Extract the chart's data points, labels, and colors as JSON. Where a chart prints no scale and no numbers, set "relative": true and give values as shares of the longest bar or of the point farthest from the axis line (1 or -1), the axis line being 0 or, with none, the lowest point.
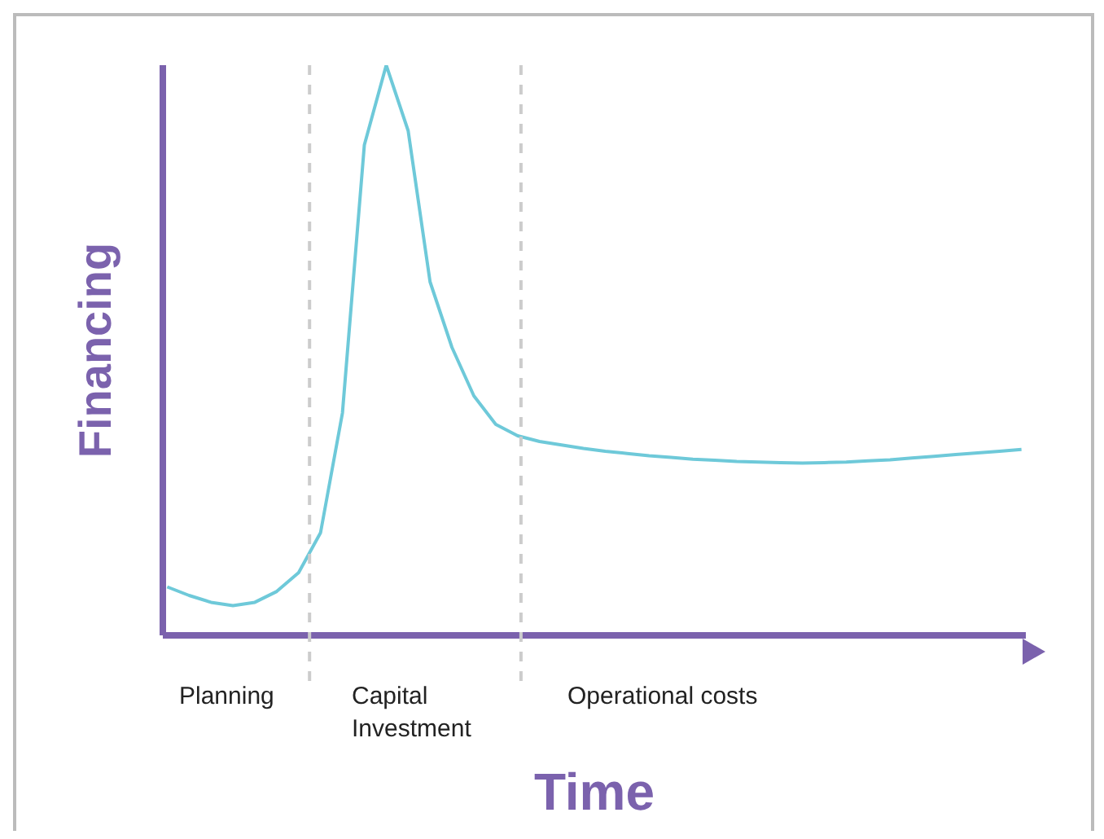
{
  "chart_data": {
    "type": "line",
    "relative": true,
    "xlabel": "Time",
    "ylabel": "Financing",
    "categories": [
      null,
      null,
      null,
      null,
      null,
      null,
      null,
      null,
      null,
      null,
      null,
      null,
      null,
      null,
      null,
      null,
      null,
      null,
      null,
      null,
      null,
      null,
      null,
      null,
      null,
      null,
      null,
      null,
      null,
      null,
      null,
      null,
      null,
      null,
      null,
      null,
      null,
      null,
      null,
      null
    ],
    "series": [
      {
        "color": "#6ec9d9",
        "values": [
          0.085,
          0.07,
          0.058,
          0.052,
          0.058,
          0.077,
          0.11,
          0.18,
          0.39,
          0.86,
          1.0,
          0.885,
          0.62,
          0.505,
          0.42,
          0.37,
          0.35,
          0.34,
          0.334,
          0.328,
          0.323,
          0.319,
          0.315,
          0.312,
          0.309,
          0.307,
          0.305,
          0.304,
          0.303,
          0.302,
          0.303,
          0.304,
          0.306,
          0.308,
          0.311,
          0.314,
          0.317,
          0.32,
          0.323,
          0.326
        ]
      }
    ],
    "annotations": [
      "Planning",
      "Capital Investment",
      "Operational costs"
    ]
  }
}
